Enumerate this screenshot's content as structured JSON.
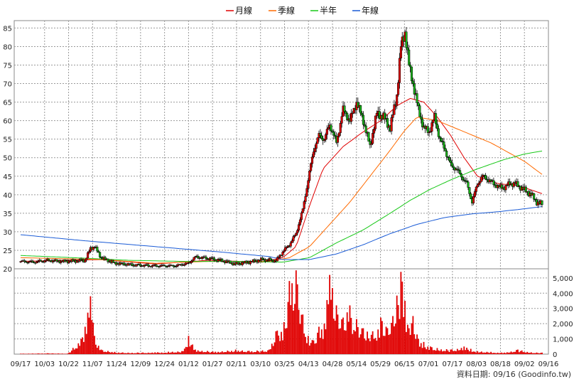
{
  "chart_data": {
    "type": "candlestick+volume",
    "legend": [
      {
        "label": "月線",
        "color": "#e00000"
      },
      {
        "label": "季線",
        "color": "#ff6a00"
      },
      {
        "label": "半年",
        "color": "#18c818"
      },
      {
        "label": "年線",
        "color": "#1a5bd6"
      }
    ],
    "x_tick_labels": [
      "09/17",
      "10/03",
      "10/22",
      "11/07",
      "11/24",
      "12/09",
      "12/24",
      "01/12",
      "01/27",
      "02/11",
      "03/10",
      "03/25",
      "04/13",
      "04/28",
      "05/14",
      "05/29",
      "06/15",
      "07/01",
      "07/17",
      "08/03",
      "08/18",
      "09/02",
      "09/16"
    ],
    "price_axis": {
      "min": 20,
      "max": 87,
      "ticks": [
        20,
        25,
        30,
        35,
        40,
        45,
        50,
        55,
        60,
        65,
        70,
        75,
        80,
        85
      ]
    },
    "volume_axis": {
      "min": 0,
      "max": 5600,
      "ticks": [
        0,
        1000,
        2000,
        3000,
        4000,
        5000
      ],
      "tick_labels": [
        "0",
        "1,000",
        "2,000",
        "3,000",
        "4,000",
        "5,000"
      ]
    },
    "price_series": [
      {
        "x": 0,
        "c": 22
      },
      {
        "x": 10,
        "c": 21.8
      },
      {
        "x": 20,
        "c": 22.3
      },
      {
        "x": 30,
        "c": 22
      },
      {
        "x": 40,
        "c": 22.1
      },
      {
        "x": 48,
        "c": 22.3
      },
      {
        "x": 52,
        "c": 25.5
      },
      {
        "x": 55,
        "c": 26
      },
      {
        "x": 60,
        "c": 23
      },
      {
        "x": 70,
        "c": 21.5
      },
      {
        "x": 85,
        "c": 21
      },
      {
        "x": 100,
        "c": 20.8
      },
      {
        "x": 115,
        "c": 20.8
      },
      {
        "x": 125,
        "c": 21.5
      },
      {
        "x": 130,
        "c": 23.2
      },
      {
        "x": 140,
        "c": 22.8
      },
      {
        "x": 150,
        "c": 22.2
      },
      {
        "x": 160,
        "c": 21.3
      },
      {
        "x": 170,
        "c": 21.8
      },
      {
        "x": 180,
        "c": 22.5
      },
      {
        "x": 190,
        "c": 22.2
      },
      {
        "x": 196,
        "c": 25
      },
      {
        "x": 200,
        "c": 26.5
      },
      {
        "x": 205,
        "c": 29.5
      },
      {
        "x": 210,
        "c": 36
      },
      {
        "x": 214,
        "c": 44
      },
      {
        "x": 218,
        "c": 52
      },
      {
        "x": 222,
        "c": 56
      },
      {
        "x": 226,
        "c": 55
      },
      {
        "x": 230,
        "c": 59
      },
      {
        "x": 235,
        "c": 54
      },
      {
        "x": 240,
        "c": 63
      },
      {
        "x": 245,
        "c": 60
      },
      {
        "x": 250,
        "c": 65
      },
      {
        "x": 255,
        "c": 60
      },
      {
        "x": 260,
        "c": 53
      },
      {
        "x": 265,
        "c": 62
      },
      {
        "x": 270,
        "c": 61
      },
      {
        "x": 275,
        "c": 58
      },
      {
        "x": 280,
        "c": 67
      },
      {
        "x": 283,
        "c": 80
      },
      {
        "x": 286,
        "c": 84
      },
      {
        "x": 289,
        "c": 75
      },
      {
        "x": 292,
        "c": 70
      },
      {
        "x": 296,
        "c": 63
      },
      {
        "x": 300,
        "c": 58
      },
      {
        "x": 304,
        "c": 57
      },
      {
        "x": 308,
        "c": 61
      },
      {
        "x": 312,
        "c": 55
      },
      {
        "x": 316,
        "c": 52
      },
      {
        "x": 320,
        "c": 48
      },
      {
        "x": 324,
        "c": 47
      },
      {
        "x": 328,
        "c": 45
      },
      {
        "x": 332,
        "c": 43
      },
      {
        "x": 336,
        "c": 38
      },
      {
        "x": 340,
        "c": 43
      },
      {
        "x": 344,
        "c": 45
      },
      {
        "x": 348,
        "c": 44
      },
      {
        "x": 352,
        "c": 43
      },
      {
        "x": 356,
        "c": 42
      },
      {
        "x": 360,
        "c": 42
      },
      {
        "x": 364,
        "c": 43
      },
      {
        "x": 368,
        "c": 43
      },
      {
        "x": 372,
        "c": 42
      },
      {
        "x": 376,
        "c": 41
      },
      {
        "x": 380,
        "c": 40
      },
      {
        "x": 384,
        "c": 38
      },
      {
        "x": 388,
        "c": 37.5
      }
    ],
    "ma_series": {
      "月線": [
        [
          0,
          22
        ],
        [
          60,
          22.5
        ],
        [
          100,
          21.3
        ],
        [
          140,
          22.3
        ],
        [
          180,
          21.8
        ],
        [
          195,
          23
        ],
        [
          205,
          26
        ],
        [
          215,
          37
        ],
        [
          225,
          47
        ],
        [
          240,
          53
        ],
        [
          255,
          57
        ],
        [
          268,
          60
        ],
        [
          280,
          64
        ],
        [
          290,
          66
        ],
        [
          300,
          65
        ],
        [
          310,
          61
        ],
        [
          320,
          56
        ],
        [
          330,
          50
        ],
        [
          340,
          45
        ],
        [
          355,
          43
        ],
        [
          370,
          42.5
        ],
        [
          388,
          40.3
        ]
      ],
      "季線": [
        [
          0,
          23
        ],
        [
          60,
          22.5
        ],
        [
          100,
          21.5
        ],
        [
          140,
          22
        ],
        [
          185,
          22
        ],
        [
          200,
          23
        ],
        [
          215,
          26
        ],
        [
          230,
          32
        ],
        [
          245,
          38
        ],
        [
          260,
          45
        ],
        [
          275,
          52
        ],
        [
          285,
          57
        ],
        [
          295,
          61
        ],
        [
          310,
          60
        ],
        [
          330,
          57
        ],
        [
          350,
          54
        ],
        [
          365,
          51
        ],
        [
          375,
          49
        ],
        [
          388,
          45.5
        ]
      ],
      "半年": [
        [
          0,
          23.6
        ],
        [
          40,
          23
        ],
        [
          80,
          22.3
        ],
        [
          120,
          22
        ],
        [
          160,
          22
        ],
        [
          195,
          21.8
        ],
        [
          215,
          23
        ],
        [
          235,
          27
        ],
        [
          255,
          30.5
        ],
        [
          275,
          35
        ],
        [
          290,
          38.5
        ],
        [
          305,
          41.5
        ],
        [
          320,
          44
        ],
        [
          340,
          47
        ],
        [
          360,
          49.5
        ],
        [
          375,
          51
        ],
        [
          388,
          51.8
        ]
      ],
      "年線": [
        [
          0,
          29.2
        ],
        [
          50,
          27.5
        ],
        [
          100,
          26
        ],
        [
          150,
          24.5
        ],
        [
          185,
          23.3
        ],
        [
          195,
          22.5
        ],
        [
          215,
          22.5
        ],
        [
          235,
          24
        ],
        [
          255,
          26.5
        ],
        [
          275,
          29.5
        ],
        [
          295,
          32
        ],
        [
          315,
          33.8
        ],
        [
          335,
          34.8
        ],
        [
          355,
          35.4
        ],
        [
          375,
          36.2
        ],
        [
          388,
          36.8
        ]
      ]
    },
    "volume_series": [
      [
        0,
        30
      ],
      [
        20,
        60
      ],
      [
        35,
        40
      ],
      [
        45,
        1000
      ],
      [
        48,
        1800
      ],
      [
        52,
        3800
      ],
      [
        55,
        1200
      ],
      [
        60,
        300
      ],
      [
        70,
        150
      ],
      [
        80,
        100
      ],
      [
        100,
        120
      ],
      [
        110,
        160
      ],
      [
        120,
        200
      ],
      [
        125,
        1200
      ],
      [
        130,
        300
      ],
      [
        145,
        160
      ],
      [
        160,
        300
      ],
      [
        170,
        220
      ],
      [
        180,
        250
      ],
      [
        185,
        300
      ],
      [
        190,
        1500
      ],
      [
        196,
        2100
      ],
      [
        200,
        4800
      ],
      [
        205,
        5500
      ],
      [
        210,
        2600
      ],
      [
        214,
        1200
      ],
      [
        218,
        900
      ],
      [
        222,
        1800
      ],
      [
        226,
        2000
      ],
      [
        230,
        5200
      ],
      [
        235,
        3200
      ],
      [
        240,
        2400
      ],
      [
        245,
        3200
      ],
      [
        250,
        2300
      ],
      [
        255,
        1700
      ],
      [
        262,
        1500
      ],
      [
        268,
        2400
      ],
      [
        272,
        1800
      ],
      [
        277,
        2500
      ],
      [
        283,
        5400
      ],
      [
        286,
        3500
      ],
      [
        289,
        1700
      ],
      [
        292,
        2500
      ],
      [
        296,
        1000
      ],
      [
        300,
        800
      ],
      [
        305,
        500
      ],
      [
        310,
        400
      ],
      [
        320,
        300
      ],
      [
        330,
        500
      ],
      [
        335,
        350
      ],
      [
        340,
        200
      ],
      [
        350,
        150
      ],
      [
        360,
        100
      ],
      [
        370,
        300
      ],
      [
        380,
        120
      ],
      [
        388,
        100
      ]
    ],
    "source_note": "資料日期: 09/16  (Goodinfo.tw)"
  }
}
